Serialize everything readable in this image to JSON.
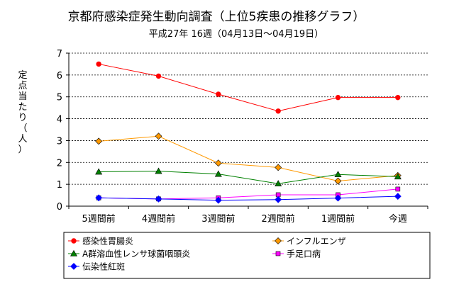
{
  "chart_data": {
    "type": "line",
    "title": "京都府感染症発生動向調査（上位5疾患の推移グラフ）",
    "subtitle": "平成27年 16週（04月13日～04月19日）",
    "ylabel": "定点当たり（人）",
    "ylim": [
      0,
      7
    ],
    "yticks": [
      0,
      1,
      2,
      3,
      4,
      5,
      6,
      7
    ],
    "grid": true,
    "legend_position": "bottom",
    "categories": [
      "5週間前",
      "4週間前",
      "3週間前",
      "2週間前",
      "1週間前",
      "今週"
    ],
    "series": [
      {
        "name": "感染性胃腸炎",
        "color": "#ff0000",
        "marker": "circle",
        "values": [
          6.5,
          5.95,
          5.12,
          4.35,
          4.97,
          4.97
        ]
      },
      {
        "name": "インフルエンザ",
        "color": "#ff9900",
        "marker": "diamond",
        "values": [
          2.97,
          3.2,
          1.97,
          1.77,
          1.15,
          1.4
        ]
      },
      {
        "name": "A群溶血性レンサ球菌咽頭炎",
        "color": "#008000",
        "marker": "triangle",
        "values": [
          1.57,
          1.6,
          1.47,
          1.03,
          1.45,
          1.35
        ]
      },
      {
        "name": "手足口病",
        "color": "#ff00ff",
        "marker": "square",
        "values": [
          0.38,
          0.33,
          0.38,
          0.52,
          0.52,
          0.78
        ]
      },
      {
        "name": "伝染性紅斑",
        "color": "#0000ff",
        "marker": "diamond",
        "values": [
          0.38,
          0.33,
          0.27,
          0.3,
          0.37,
          0.45
        ]
      }
    ]
  }
}
